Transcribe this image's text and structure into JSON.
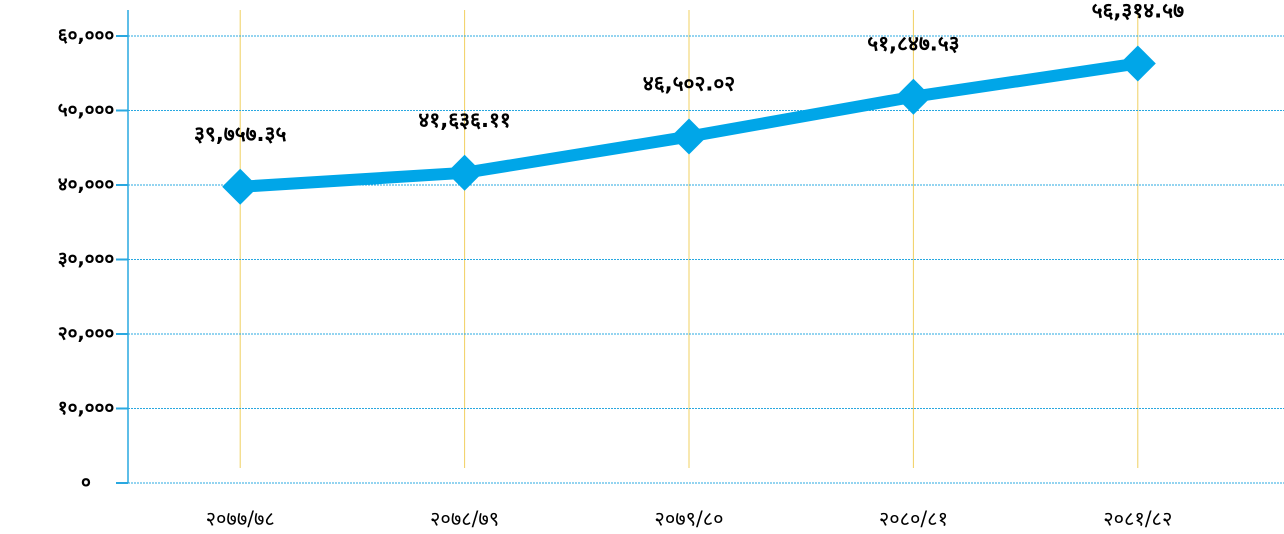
{
  "chart_data": {
    "type": "line",
    "categories": [
      "२०७७/७८",
      "२०७८/७९",
      "२०७९/८०",
      "२०८०/८१",
      "२०८१/८२"
    ],
    "series": [
      {
        "color": "#00a6e8",
        "values": [
          39757.35,
          41636.11,
          46502.02,
          51847.53,
          56314.57
        ],
        "value_labels": [
          "३९,७५७.३५",
          "४१,६३६.११",
          "४६,५०२.०२",
          "५१,८४७.५३",
          "५६,३१४.५७"
        ]
      }
    ],
    "ylim": [
      0,
      60000
    ],
    "yticks": [
      {
        "value": 0,
        "label": "०"
      },
      {
        "value": 10000,
        "label": "१०,०००"
      },
      {
        "value": 20000,
        "label": "२०,०००"
      },
      {
        "value": 30000,
        "label": "३०,०००"
      },
      {
        "value": 40000,
        "label": "४०,०००"
      },
      {
        "value": 50000,
        "label": "५०,०००"
      },
      {
        "value": 60000,
        "label": "६०,०००"
      }
    ],
    "grid": true
  }
}
